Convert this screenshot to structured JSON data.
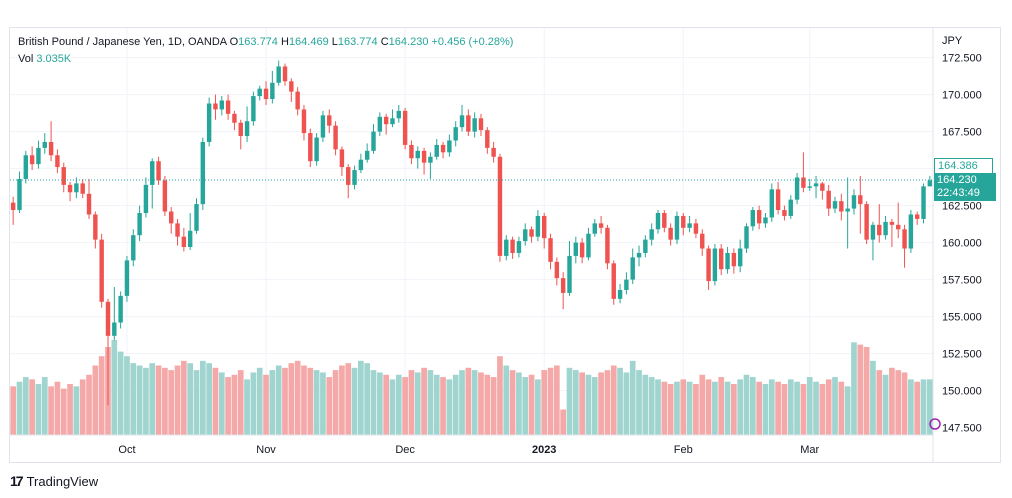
{
  "header": {
    "symbol": "British Pound / Japanese Yen, 1D, OANDA",
    "open_label": "O",
    "open": "163.774",
    "high_label": "H",
    "high": "164.469",
    "low_label": "L",
    "low": "163.774",
    "close_label": "C",
    "close": "164.230",
    "change": "+0.456 (+0.28%)",
    "vol_label": "Vol",
    "vol": "3.035K"
  },
  "axis": {
    "currency": "JPY",
    "price_ticks": [
      "172.500",
      "170.000",
      "167.500",
      "165.000",
      "162.500",
      "160.000",
      "157.500",
      "155.000",
      "152.500",
      "150.000",
      "147.500"
    ],
    "time_ticks": [
      "Oct",
      "Nov",
      "Dec",
      "2023",
      "Feb",
      "Mar"
    ]
  },
  "price_tags": {
    "ask": "164.386",
    "last": "164.230",
    "countdown": "22:43:49"
  },
  "brand": {
    "name": "TradingView"
  },
  "colors": {
    "up": "#26a69a",
    "down": "#ef5350",
    "vol_up": "#9fd4cf",
    "vol_down": "#f4a9a8"
  },
  "chart_data": {
    "type": "candlestick",
    "title": "British Pound / Japanese Yen, 1D, OANDA",
    "y_unit": "JPY",
    "ylim": [
      147.0,
      174.5
    ],
    "grid": true,
    "last_price_line": 164.23,
    "x_ticks": [
      {
        "label": "Oct",
        "index": 18
      },
      {
        "label": "Nov",
        "index": 40
      },
      {
        "label": "Dec",
        "index": 62
      },
      {
        "label": "2023",
        "index": 84
      },
      {
        "label": "Feb",
        "index": 106
      },
      {
        "label": "Mar",
        "index": 126
      }
    ],
    "candles": [
      [
        162.7,
        162.2,
        163.1,
        161.2,
        2.1
      ],
      [
        162.2,
        164.3,
        164.8,
        162.0,
        2.3
      ],
      [
        164.3,
        165.9,
        166.2,
        164.0,
        2.5
      ],
      [
        165.9,
        165.3,
        166.5,
        164.9,
        2.4
      ],
      [
        165.3,
        166.4,
        166.9,
        165.0,
        2.2
      ],
      [
        166.4,
        166.8,
        167.4,
        166.0,
        2.5
      ],
      [
        166.8,
        165.9,
        168.2,
        165.5,
        2.1
      ],
      [
        165.9,
        165.1,
        166.3,
        164.7,
        2.3
      ],
      [
        165.1,
        163.9,
        165.4,
        163.4,
        2.0
      ],
      [
        163.9,
        163.4,
        164.1,
        162.8,
        2.2
      ],
      [
        163.4,
        164.0,
        164.4,
        163.0,
        2.1
      ],
      [
        164.0,
        163.3,
        164.3,
        163.0,
        2.4
      ],
      [
        163.3,
        161.9,
        164.3,
        161.6,
        2.6
      ],
      [
        161.9,
        160.2,
        162.1,
        159.6,
        3.0
      ],
      [
        160.2,
        156.0,
        160.6,
        155.6,
        3.4
      ],
      [
        156.0,
        153.7,
        156.2,
        149.0,
        3.8
      ],
      [
        153.7,
        154.6,
        157.0,
        153.4,
        4.1
      ],
      [
        154.6,
        156.4,
        156.7,
        154.2,
        3.6
      ],
      [
        156.4,
        158.8,
        159.1,
        156.0,
        3.4
      ],
      [
        158.8,
        160.5,
        160.9,
        158.4,
        3.1
      ],
      [
        160.5,
        162.0,
        162.5,
        160.1,
        3.0
      ],
      [
        162.0,
        163.9,
        164.4,
        161.7,
        2.9
      ],
      [
        163.9,
        165.5,
        165.7,
        162.3,
        3.1
      ],
      [
        165.5,
        164.2,
        165.8,
        163.9,
        3.0
      ],
      [
        164.2,
        162.1,
        164.5,
        161.8,
        2.9
      ],
      [
        162.1,
        161.3,
        162.4,
        160.6,
        2.8
      ],
      [
        161.3,
        160.4,
        161.6,
        159.8,
        3.0
      ],
      [
        160.4,
        159.7,
        161.0,
        159.4,
        3.2
      ],
      [
        159.7,
        160.8,
        162.0,
        159.5,
        3.1
      ],
      [
        160.8,
        162.6,
        163.0,
        160.6,
        2.8
      ],
      [
        162.6,
        166.8,
        167.1,
        162.2,
        3.2
      ],
      [
        166.8,
        169.4,
        169.8,
        166.5,
        3.1
      ],
      [
        169.4,
        169.0,
        170.0,
        168.3,
        2.9
      ],
      [
        169.0,
        169.6,
        169.9,
        168.6,
        2.7
      ],
      [
        169.6,
        168.7,
        170.0,
        168.3,
        2.5
      ],
      [
        168.7,
        168.1,
        168.9,
        167.6,
        2.6
      ],
      [
        168.1,
        167.2,
        168.3,
        166.3,
        2.8
      ],
      [
        167.2,
        168.2,
        169.2,
        166.8,
        2.4
      ],
      [
        168.2,
        169.9,
        170.2,
        167.9,
        2.7
      ],
      [
        169.9,
        170.4,
        170.6,
        169.6,
        2.9
      ],
      [
        170.4,
        169.7,
        170.9,
        169.3,
        2.6
      ],
      [
        169.7,
        170.8,
        171.6,
        169.4,
        2.8
      ],
      [
        170.8,
        171.9,
        172.3,
        170.6,
        3.0
      ],
      [
        171.9,
        170.9,
        172.1,
        170.6,
        2.9
      ],
      [
        170.9,
        170.2,
        171.1,
        169.5,
        3.1
      ],
      [
        170.2,
        169.0,
        170.5,
        168.6,
        3.2
      ],
      [
        169.0,
        167.4,
        169.3,
        166.9,
        3.0
      ],
      [
        167.4,
        165.5,
        167.7,
        165.1,
        2.9
      ],
      [
        165.5,
        167.1,
        167.4,
        165.2,
        2.8
      ],
      [
        167.1,
        168.6,
        168.9,
        166.8,
        2.7
      ],
      [
        168.6,
        167.9,
        169.0,
        167.4,
        2.5
      ],
      [
        167.9,
        166.3,
        168.2,
        165.9,
        2.8
      ],
      [
        166.3,
        165.1,
        166.5,
        164.5,
        3.0
      ],
      [
        165.1,
        163.9,
        165.3,
        163.0,
        3.1
      ],
      [
        163.9,
        164.9,
        165.2,
        163.6,
        2.9
      ],
      [
        164.9,
        165.6,
        166.0,
        164.7,
        3.2
      ],
      [
        165.6,
        166.2,
        166.7,
        165.4,
        3.1
      ],
      [
        166.2,
        167.5,
        168.0,
        166.0,
        2.8
      ],
      [
        167.5,
        168.5,
        168.8,
        167.2,
        2.7
      ],
      [
        168.5,
        168.0,
        168.7,
        167.3,
        2.6
      ],
      [
        168.0,
        168.4,
        169.0,
        167.8,
        2.4
      ],
      [
        168.4,
        168.9,
        169.3,
        168.1,
        2.6
      ],
      [
        168.9,
        166.6,
        169.1,
        166.3,
        2.5
      ],
      [
        166.6,
        165.7,
        166.9,
        165.3,
        2.8
      ],
      [
        165.7,
        166.2,
        166.5,
        165.0,
        2.7
      ],
      [
        166.2,
        165.4,
        166.4,
        164.6,
        2.9
      ],
      [
        165.4,
        165.8,
        166.1,
        164.3,
        2.8
      ],
      [
        165.8,
        166.6,
        167.0,
        165.6,
        2.6
      ],
      [
        166.6,
        166.1,
        166.8,
        165.7,
        2.5
      ],
      [
        166.1,
        166.9,
        167.3,
        165.8,
        2.4
      ],
      [
        166.9,
        167.8,
        168.2,
        166.5,
        2.6
      ],
      [
        167.8,
        168.6,
        169.3,
        167.5,
        2.8
      ],
      [
        168.6,
        167.5,
        169.0,
        167.2,
        2.9
      ],
      [
        167.5,
        168.4,
        168.8,
        167.1,
        2.8
      ],
      [
        168.4,
        167.6,
        168.7,
        167.2,
        2.7
      ],
      [
        167.6,
        166.4,
        167.8,
        166.0,
        2.6
      ],
      [
        166.4,
        165.8,
        166.8,
        165.4,
        2.5
      ],
      [
        165.8,
        159.1,
        166.0,
        158.7,
        3.4
      ],
      [
        159.1,
        160.2,
        160.5,
        158.8,
        3.0
      ],
      [
        160.2,
        159.3,
        160.4,
        158.9,
        2.8
      ],
      [
        159.3,
        160.1,
        160.4,
        159.0,
        2.7
      ],
      [
        160.1,
        160.9,
        161.3,
        159.8,
        2.5
      ],
      [
        160.9,
        160.4,
        161.1,
        160.0,
        2.6
      ],
      [
        160.4,
        161.8,
        162.2,
        160.1,
        2.4
      ],
      [
        161.8,
        160.3,
        162.0,
        159.6,
        2.8
      ],
      [
        160.3,
        158.7,
        160.6,
        158.2,
        2.9
      ],
      [
        158.7,
        157.6,
        159.0,
        157.1,
        3.0
      ],
      [
        157.6,
        156.6,
        158.0,
        155.5,
        1.1
      ],
      [
        156.6,
        159.1,
        160.1,
        156.4,
        2.9
      ],
      [
        159.1,
        160.0,
        160.4,
        158.6,
        2.8
      ],
      [
        160.0,
        159.0,
        160.3,
        158.6,
        2.7
      ],
      [
        159.0,
        160.6,
        161.0,
        158.8,
        2.6
      ],
      [
        160.6,
        161.3,
        161.6,
        160.4,
        2.5
      ],
      [
        161.3,
        161.0,
        161.8,
        160.6,
        2.7
      ],
      [
        161.0,
        158.6,
        161.2,
        158.2,
        2.8
      ],
      [
        158.6,
        156.2,
        158.8,
        155.8,
        3.0
      ],
      [
        156.2,
        156.8,
        157.2,
        155.9,
        2.9
      ],
      [
        156.8,
        157.5,
        158.0,
        156.5,
        2.7
      ],
      [
        157.5,
        159.0,
        159.6,
        157.2,
        3.2
      ],
      [
        159.0,
        159.3,
        159.8,
        158.4,
        2.8
      ],
      [
        159.3,
        160.2,
        160.5,
        159.0,
        2.6
      ],
      [
        160.2,
        160.9,
        161.3,
        159.8,
        2.5
      ],
      [
        160.9,
        162.0,
        162.2,
        160.6,
        2.4
      ],
      [
        162.0,
        161.0,
        162.2,
        160.7,
        2.3
      ],
      [
        161.0,
        160.2,
        161.3,
        159.8,
        2.2
      ],
      [
        160.2,
        161.8,
        162.1,
        159.9,
        2.3
      ],
      [
        161.8,
        161.0,
        162.0,
        160.5,
        2.4
      ],
      [
        161.0,
        161.3,
        161.8,
        160.7,
        2.3
      ],
      [
        161.3,
        160.6,
        161.6,
        160.3,
        2.2
      ],
      [
        160.6,
        159.6,
        160.9,
        159.1,
        2.6
      ],
      [
        159.6,
        157.4,
        159.8,
        156.8,
        2.4
      ],
      [
        157.4,
        159.6,
        159.9,
        157.1,
        2.3
      ],
      [
        159.6,
        158.2,
        159.9,
        157.8,
        2.5
      ],
      [
        158.2,
        159.3,
        159.7,
        157.9,
        2.3
      ],
      [
        159.3,
        158.4,
        159.6,
        157.9,
        2.2
      ],
      [
        158.4,
        159.6,
        160.2,
        158.0,
        2.4
      ],
      [
        159.6,
        161.1,
        161.3,
        159.3,
        2.6
      ],
      [
        161.1,
        162.2,
        162.4,
        160.8,
        2.5
      ],
      [
        162.2,
        161.3,
        162.5,
        160.9,
        2.3
      ],
      [
        161.3,
        161.7,
        162.0,
        161.0,
        2.2
      ],
      [
        161.7,
        163.6,
        164.0,
        161.4,
        2.4
      ],
      [
        163.6,
        162.2,
        164.1,
        161.9,
        2.3
      ],
      [
        162.2,
        161.8,
        162.5,
        161.5,
        2.2
      ],
      [
        161.8,
        162.9,
        163.2,
        161.6,
        2.4
      ],
      [
        162.9,
        164.4,
        164.7,
        162.6,
        2.3
      ],
      [
        164.4,
        163.7,
        166.1,
        163.4,
        2.2
      ],
      [
        163.7,
        163.8,
        164.3,
        163.5,
        2.5
      ],
      [
        163.8,
        164.0,
        164.5,
        163.0,
        2.3
      ],
      [
        164.0,
        163.5,
        164.1,
        162.9,
        2.2
      ],
      [
        163.5,
        162.3,
        163.9,
        161.8,
        2.4
      ],
      [
        162.3,
        162.8,
        163.1,
        162.0,
        2.5
      ],
      [
        162.8,
        162.1,
        163.3,
        161.5,
        2.3
      ],
      [
        162.1,
        162.3,
        164.4,
        159.6,
        2.1
      ],
      [
        162.3,
        163.2,
        163.6,
        161.9,
        4.0
      ],
      [
        163.2,
        162.6,
        164.5,
        160.6,
        3.9
      ],
      [
        162.6,
        160.2,
        162.8,
        159.9,
        3.8
      ],
      [
        160.2,
        161.2,
        161.4,
        158.8,
        3.2
      ],
      [
        161.2,
        160.5,
        162.6,
        160.0,
        2.8
      ],
      [
        160.5,
        161.4,
        161.8,
        160.2,
        2.6
      ],
      [
        161.4,
        161.2,
        161.6,
        159.7,
        2.9
      ],
      [
        161.2,
        160.9,
        162.7,
        160.3,
        2.8
      ],
      [
        160.9,
        159.6,
        161.2,
        158.3,
        2.7
      ],
      [
        159.6,
        161.9,
        162.2,
        159.3,
        2.4
      ],
      [
        161.9,
        161.6,
        162.1,
        161.2,
        2.3
      ],
      [
        161.6,
        163.8,
        164.0,
        161.3,
        2.4
      ],
      [
        163.8,
        164.2,
        164.5,
        163.8,
        2.4
      ]
    ]
  }
}
